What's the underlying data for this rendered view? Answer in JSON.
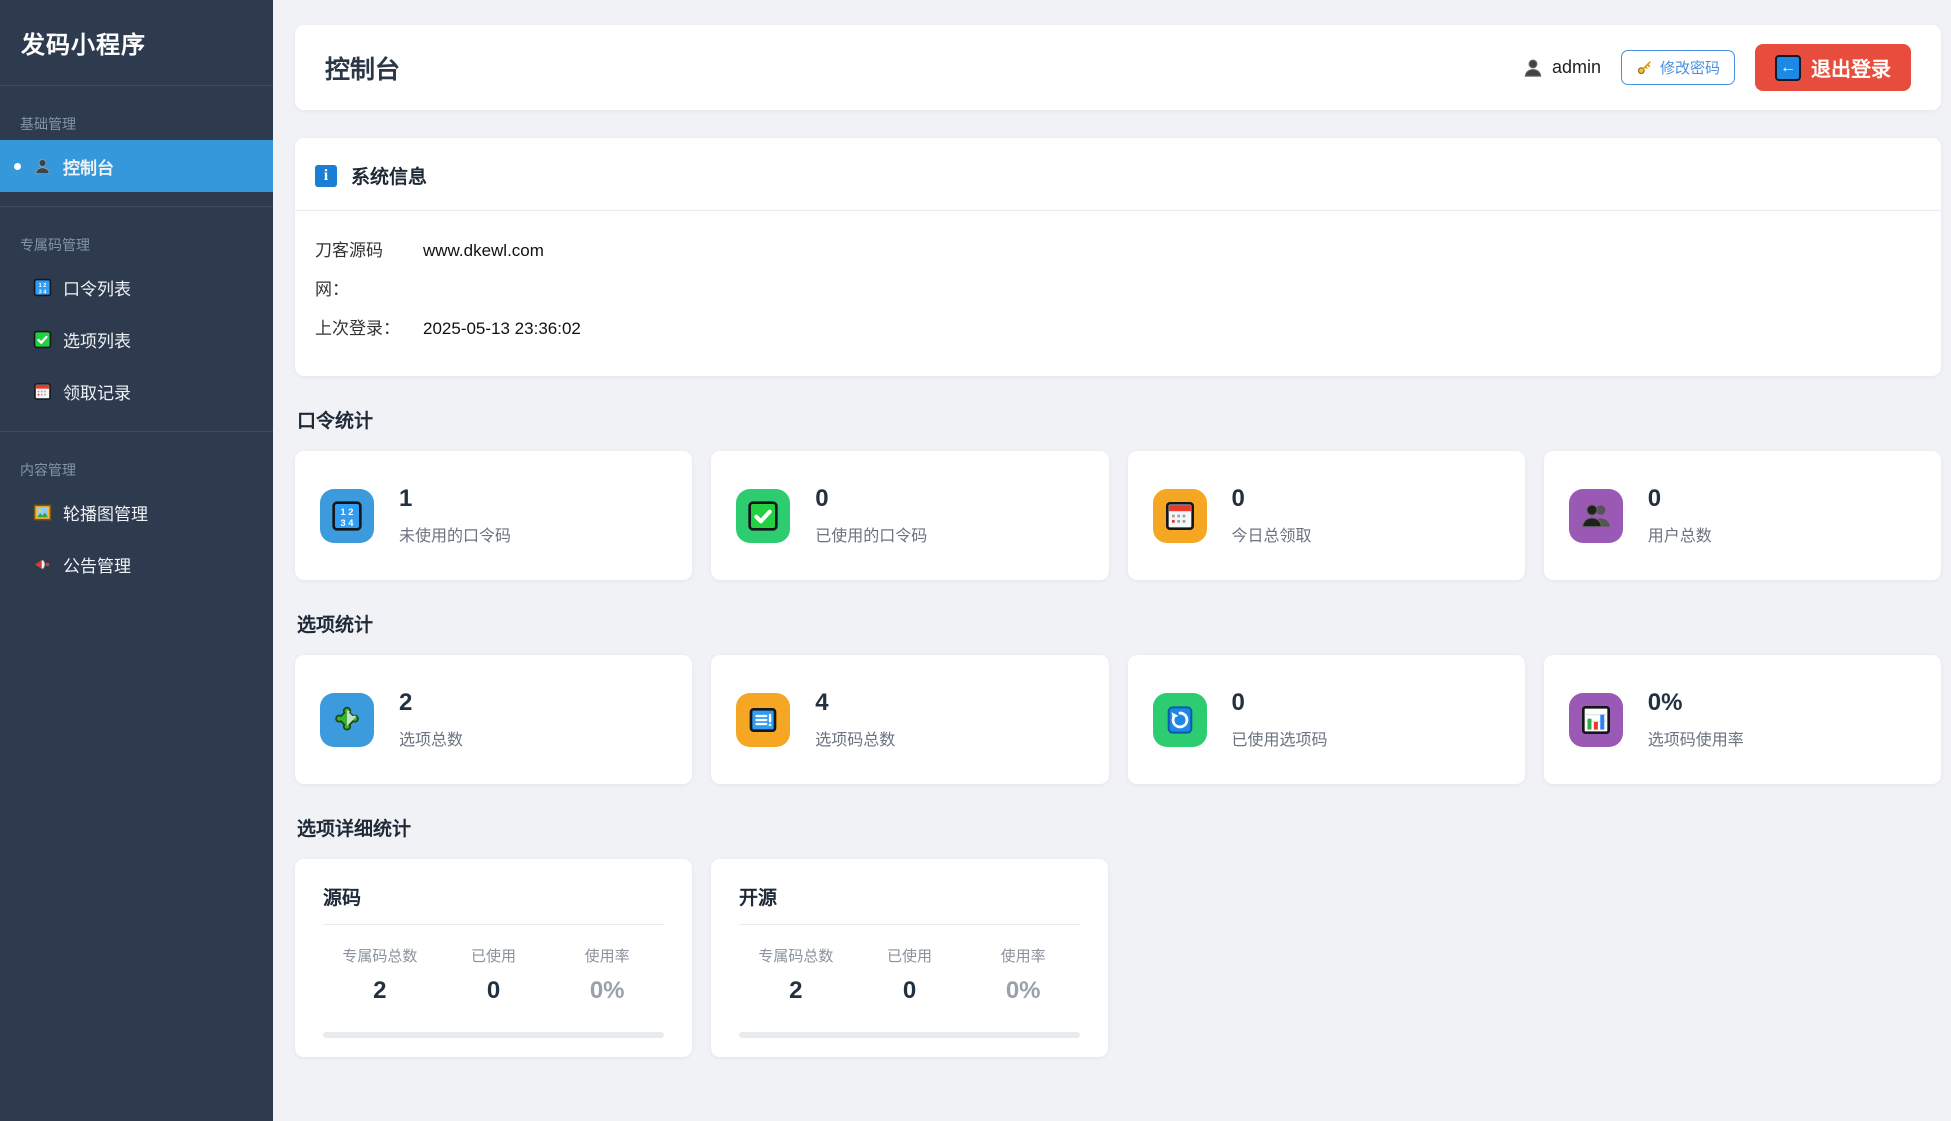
{
  "colors": {
    "sidebar_bg": "#2e3b4e",
    "active_blue": "#3498db",
    "danger_red": "#e74c3c",
    "outline_blue": "#4a90e2",
    "card_icon_blue": "#3b9bdc",
    "card_icon_green": "#2ecc71",
    "card_icon_orange": "#f5a623",
    "card_icon_purple": "#9b59b6",
    "main_bg": "#f0f2f5"
  },
  "sidebar": {
    "title": "发码小程序",
    "sections": [
      {
        "label": "基础管理",
        "items": [
          {
            "icon": "user-icon",
            "label": "控制台",
            "active": true
          }
        ]
      },
      {
        "label": "专属码管理",
        "items": [
          {
            "icon": "input-numbers-icon",
            "label": "口令列表"
          },
          {
            "icon": "check-mark-icon",
            "label": "选项列表"
          },
          {
            "icon": "calendar-icon",
            "label": "领取记录"
          }
        ]
      },
      {
        "label": "内容管理",
        "items": [
          {
            "icon": "framed-picture-icon",
            "label": "轮播图管理"
          },
          {
            "icon": "megaphone-icon",
            "label": "公告管理"
          }
        ]
      }
    ]
  },
  "header": {
    "title": "控制台",
    "username": "admin",
    "change_password": "修改密码",
    "logout": "退出登录",
    "logout_arrow": "←"
  },
  "system": {
    "title": "系统信息",
    "info_glyph": "i",
    "rows": [
      {
        "label": "刀客源码网：",
        "value": "www.dkewl.com"
      },
      {
        "label": "上次登录：",
        "value": "2025-05-13 23:36:02"
      }
    ]
  },
  "sections": [
    {
      "title": "口令统计",
      "cards": [
        {
          "icon": "input-numbers-icon",
          "color": "#3b9bdc",
          "value": "1",
          "label": "未使用的口令码"
        },
        {
          "icon": "check-mark-icon",
          "color": "#2ecc71",
          "value": "0",
          "label": "已使用的口令码"
        },
        {
          "icon": "calendar-icon",
          "color": "#f5a623",
          "value": "0",
          "label": "今日总领取"
        },
        {
          "icon": "users-icon",
          "color": "#9b59b6",
          "value": "0",
          "label": "用户总数"
        }
      ]
    },
    {
      "title": "选项统计",
      "cards": [
        {
          "icon": "puzzle-icon",
          "color": "#3b9bdc",
          "value": "2",
          "label": "选项总数"
        },
        {
          "icon": "notepad-icon",
          "color": "#f5a623",
          "value": "4",
          "label": "选项码总数"
        },
        {
          "icon": "refresh-icon",
          "color": "#2ecc71",
          "value": "0",
          "label": "已使用选项码"
        },
        {
          "icon": "bar-chart-icon",
          "color": "#9b59b6",
          "value": "0%",
          "label": "选项码使用率"
        }
      ]
    }
  ],
  "detail": {
    "title": "选项详细统计",
    "cards": [
      {
        "title": "源码",
        "columns": [
          "专属码总数",
          "已使用",
          "使用率"
        ],
        "values": [
          "2",
          "0",
          "0%"
        ],
        "progress_percent": 0
      },
      {
        "title": "开源",
        "columns": [
          "专属码总数",
          "已使用",
          "使用率"
        ],
        "values": [
          "2",
          "0",
          "0%"
        ],
        "progress_percent": 0
      }
    ]
  }
}
